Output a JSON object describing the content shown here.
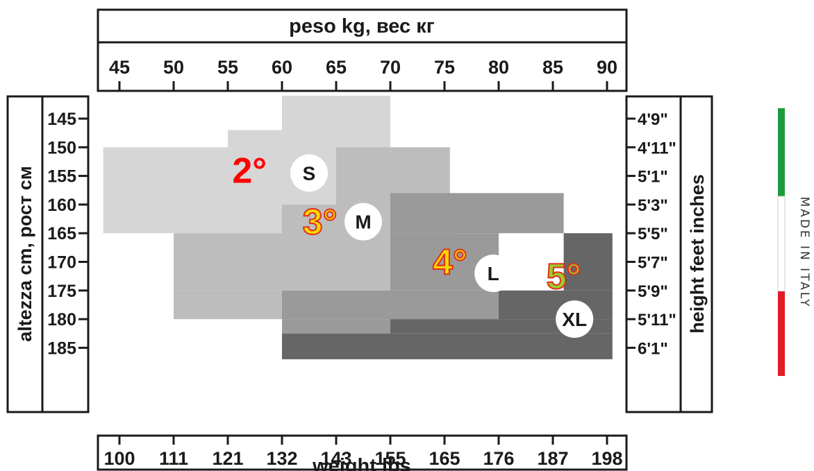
{
  "chart_data": {
    "type": "table",
    "top_axis": {
      "title": "peso kg, вес кг",
      "ticks": [
        "45",
        "50",
        "55",
        "60",
        "65",
        "70",
        "75",
        "80",
        "85",
        "90"
      ]
    },
    "bottom_axis": {
      "title": "weight lbs",
      "ticks": [
        "100",
        "111",
        "121",
        "132",
        "143",
        "155",
        "165",
        "176",
        "187",
        "198"
      ]
    },
    "left_axis": {
      "title": "altezza cm, рост см",
      "ticks": [
        "145",
        "150",
        "155",
        "160",
        "165",
        "170",
        "175",
        "180",
        "185"
      ]
    },
    "right_axis": {
      "title": "height feet inches",
      "ticks": [
        "4'9\"",
        "4'11\"",
        "5'1\"",
        "5'3\"",
        "5'5\"",
        "5'7\"",
        "5'9\"",
        "5'11\"",
        "6'1\""
      ]
    },
    "sizes": [
      {
        "label": "S",
        "compression": "2°",
        "fill": "#d6d6d6",
        "label_color": "#ff0000",
        "label_at": {
          "weight_kg": 62.5,
          "height_cm": 154.5
        },
        "compression_at": {
          "weight_kg": 57,
          "height_cm": 154
        },
        "regions": [
          {
            "weight_kg": [
              60,
              70
            ],
            "height_cm": [
              141,
              147
            ]
          },
          {
            "weight_kg": [
              55,
              70
            ],
            "height_cm": [
              147,
              150
            ]
          },
          {
            "weight_kg": [
              43.5,
              70
            ],
            "height_cm": [
              150,
              165
            ]
          }
        ]
      },
      {
        "label": "M",
        "compression": "3°",
        "fill": "#bdbdbd",
        "label_color": "#ffd700",
        "label_at": {
          "weight_kg": 67.5,
          "height_cm": 163
        },
        "compression_at": {
          "weight_kg": 63.5,
          "height_cm": 163
        },
        "regions": [
          {
            "weight_kg": [
              65,
              75.5
            ],
            "height_cm": [
              150,
              160
            ]
          },
          {
            "weight_kg": [
              60,
              75.5
            ],
            "height_cm": [
              160,
              165
            ]
          },
          {
            "weight_kg": [
              50,
              70
            ],
            "height_cm": [
              165,
              175
            ]
          },
          {
            "weight_kg": [
              50,
              60
            ],
            "height_cm": [
              175,
              180
            ]
          }
        ]
      },
      {
        "label": "L",
        "compression": "4°",
        "fill": "#9a9a9a",
        "label_color": "#ffd700",
        "label_at": {
          "weight_kg": 79.5,
          "height_cm": 172
        },
        "compression_at": {
          "weight_kg": 75.5,
          "height_cm": 170
        },
        "regions": [
          {
            "weight_kg": [
              70,
              86
            ],
            "height_cm": [
              158,
              165
            ]
          },
          {
            "weight_kg": [
              70,
              80
            ],
            "height_cm": [
              165,
              175
            ]
          },
          {
            "weight_kg": [
              60,
              80
            ],
            "height_cm": [
              175,
              180
            ]
          },
          {
            "weight_kg": [
              60,
              70
            ],
            "height_cm": [
              180,
              182.5
            ]
          }
        ]
      },
      {
        "label": "XL",
        "compression": "5°",
        "fill": "#666666",
        "label_color": "#9ccc2a",
        "label_at": {
          "weight_kg": 87,
          "height_cm": 180
        },
        "compression_at": {
          "weight_kg": 86,
          "height_cm": 172.5
        },
        "regions": [
          {
            "weight_kg": [
              86,
              90.5
            ],
            "height_cm": [
              165,
              175
            ]
          },
          {
            "weight_kg": [
              80,
              90.5
            ],
            "height_cm": [
              175,
              180
            ]
          },
          {
            "weight_kg": [
              70,
              90.5
            ],
            "height_cm": [
              180,
              182.5
            ]
          },
          {
            "weight_kg": [
              60,
              90.5
            ],
            "height_cm": [
              182.5,
              187
            ]
          }
        ]
      }
    ]
  },
  "side_label": {
    "text": "MADE IN ITALY",
    "flag_colors": [
      "#1e9b3c",
      "#ffffff",
      "#e21c26"
    ]
  }
}
